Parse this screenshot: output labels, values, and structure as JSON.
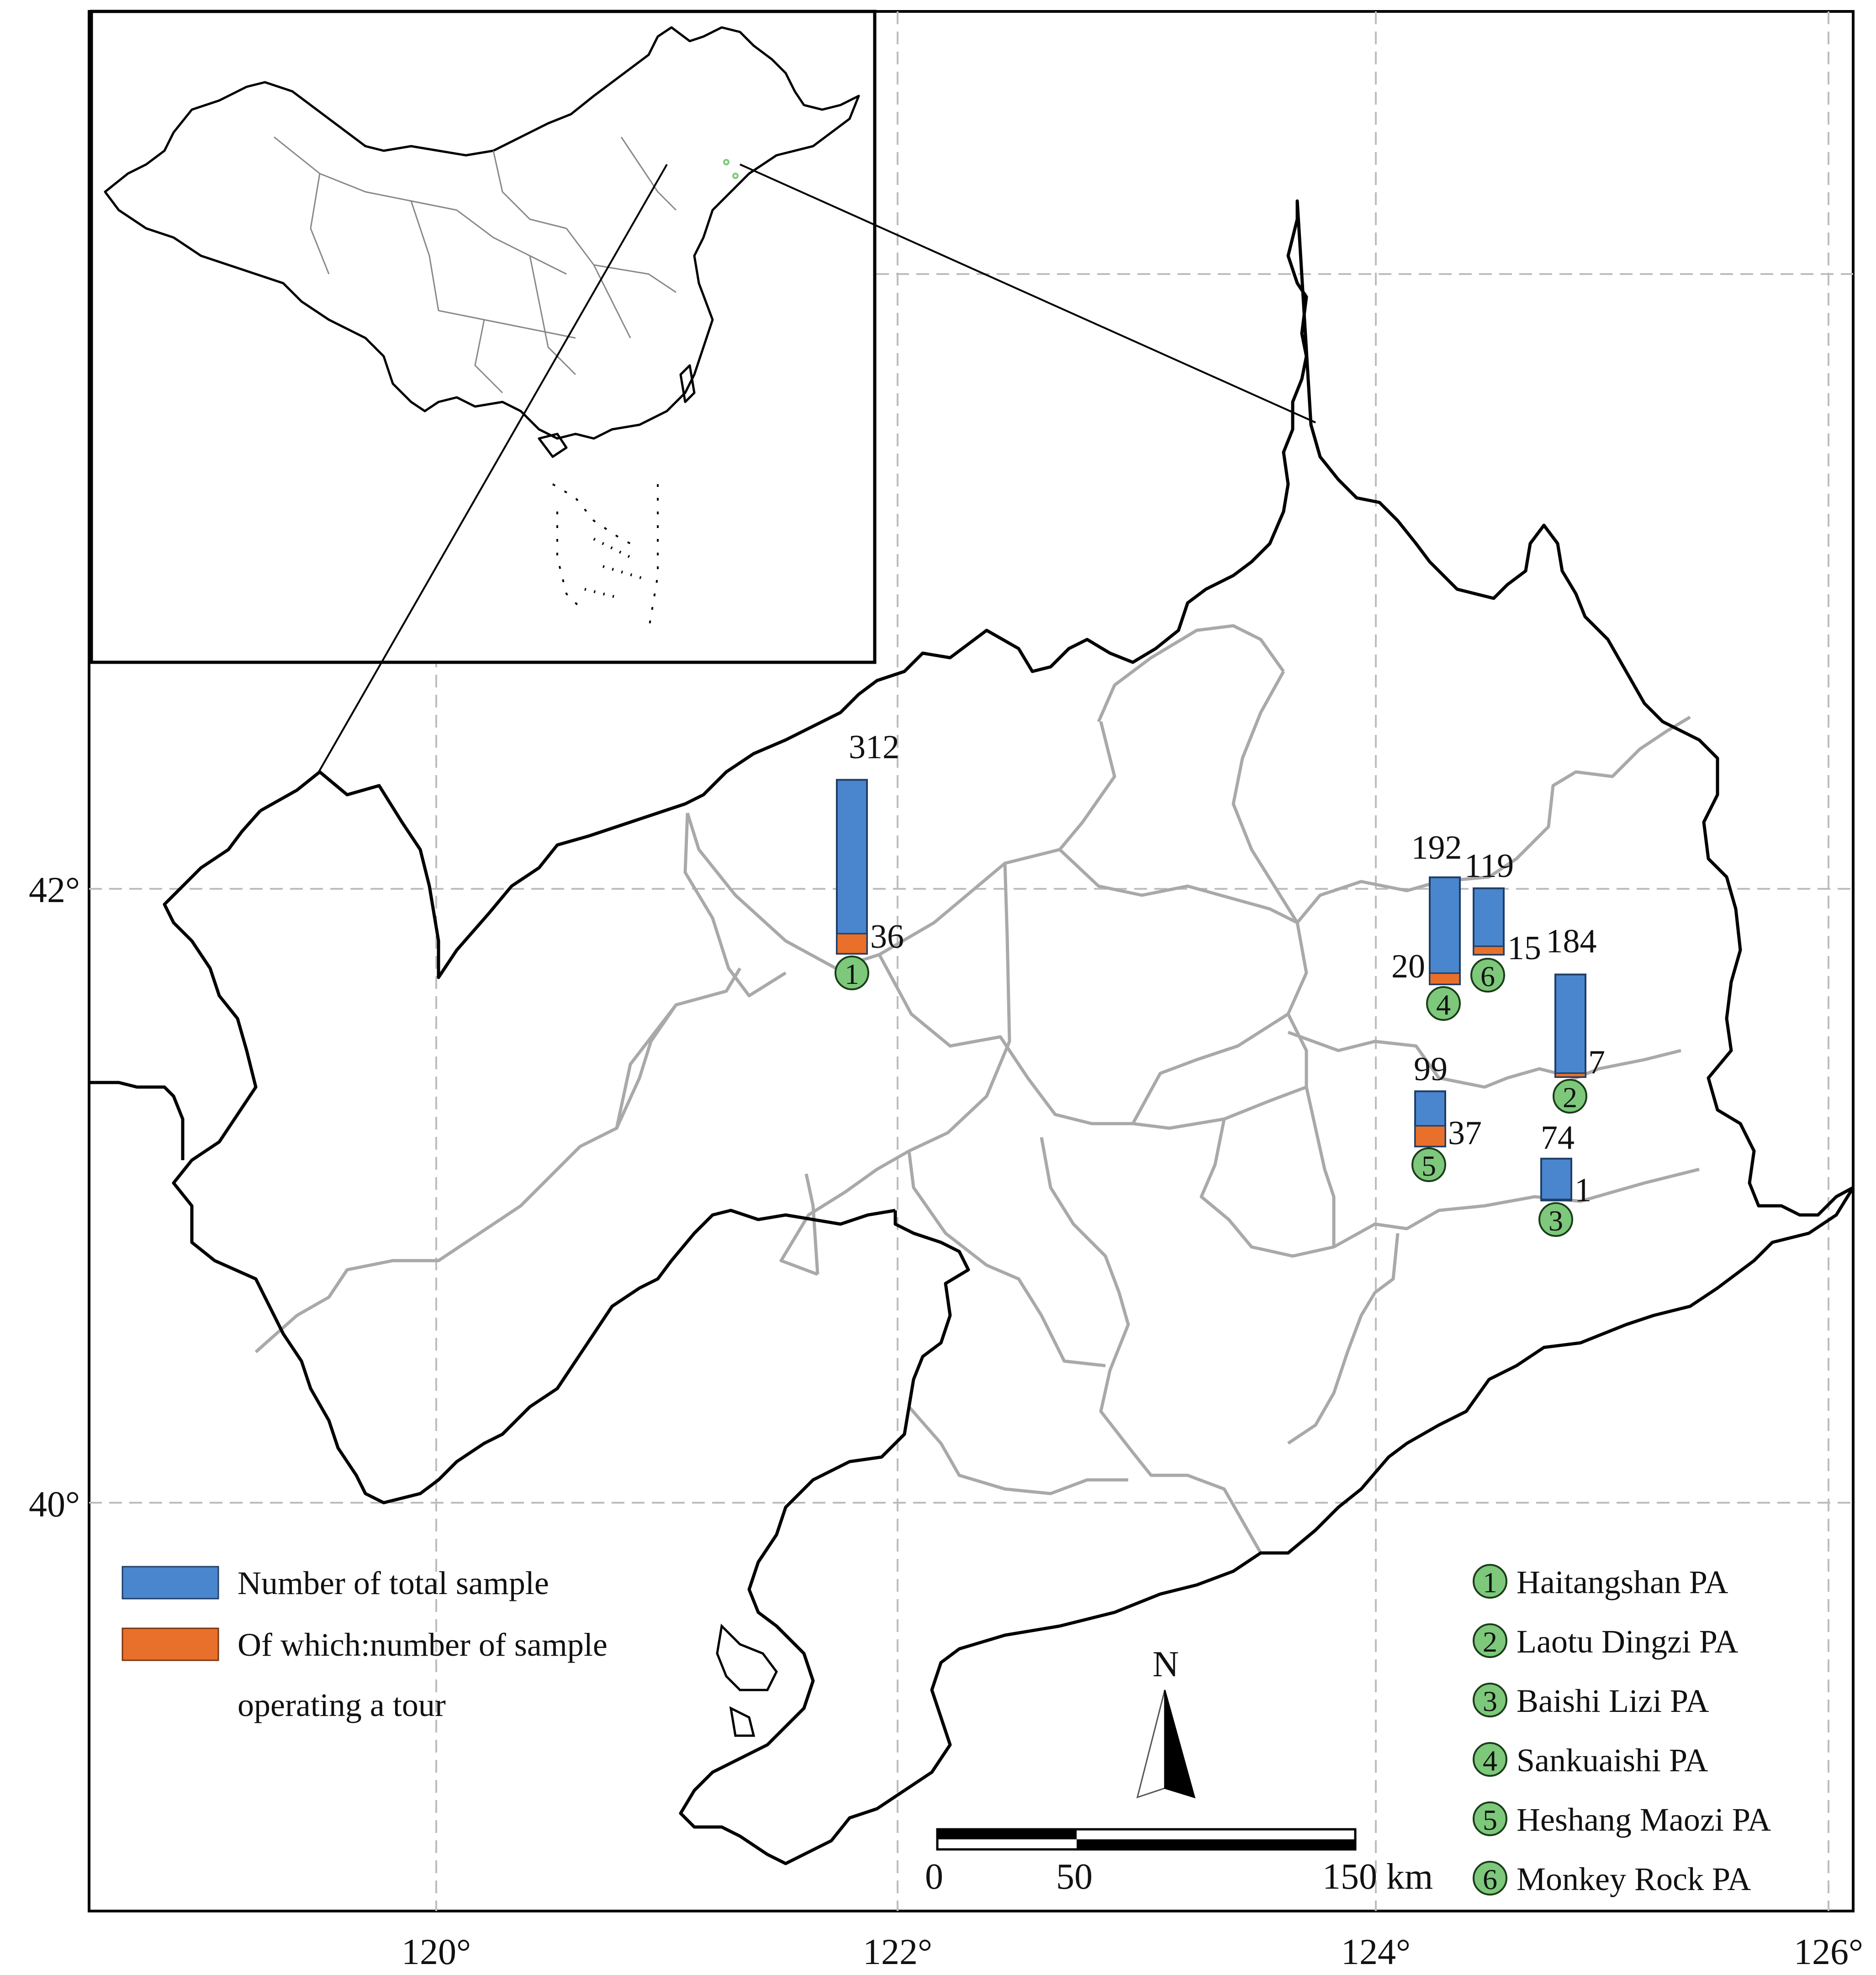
{
  "axes": {
    "longitude_labels": [
      "120°",
      "122°",
      "124°",
      "126°"
    ],
    "latitude_labels": [
      "42°",
      "40°"
    ]
  },
  "sites": [
    {
      "id": "1",
      "name": "Haitangshan PA",
      "total": 312,
      "tour": 36,
      "total_label": "312",
      "tour_label": "36"
    },
    {
      "id": "2",
      "name": "Laotu Dingzi PA",
      "total": 184,
      "tour": 7,
      "total_label": "184",
      "tour_label": "7"
    },
    {
      "id": "3",
      "name": "Baishi Lizi PA",
      "total": 74,
      "tour": 1,
      "total_label": "74",
      "tour_label": "1"
    },
    {
      "id": "4",
      "name": "Sankuaishi PA",
      "total": 192,
      "tour": 20,
      "total_label": "192",
      "tour_label": "20"
    },
    {
      "id": "5",
      "name": "Heshang Maozi PA",
      "total": 99,
      "tour": 37,
      "total_label": "99",
      "tour_label": "37"
    },
    {
      "id": "6",
      "name": "Monkey Rock PA",
      "total": 119,
      "tour": 15,
      "total_label": "119",
      "tour_label": "15"
    }
  ],
  "legend": {
    "total_label": "Number of total sample",
    "tour_label_line1": "Of which:number of sample",
    "tour_label_line2": "operating a tour"
  },
  "pa_legend": [
    {
      "num": "1",
      "label": "Haitangshan PA"
    },
    {
      "num": "2",
      "label": "Laotu Dingzi PA"
    },
    {
      "num": "3",
      "label": "Baishi Lizi PA"
    },
    {
      "num": "4",
      "label": "Sankuaishi PA"
    },
    {
      "num": "5",
      "label": "Heshang Maozi PA"
    },
    {
      "num": "6",
      "label": "Monkey Rock PA"
    }
  ],
  "north_arrow": {
    "label": "N"
  },
  "scale_bar": {
    "ticks": [
      "0",
      "50",
      "150 km"
    ]
  },
  "colors": {
    "total": "#4A86CE",
    "tour": "#E8702A",
    "marker_fill": "#7DC87B",
    "border_province": "#000000",
    "border_county": "#A9A9A9",
    "grid": "#BDBDBD"
  }
}
